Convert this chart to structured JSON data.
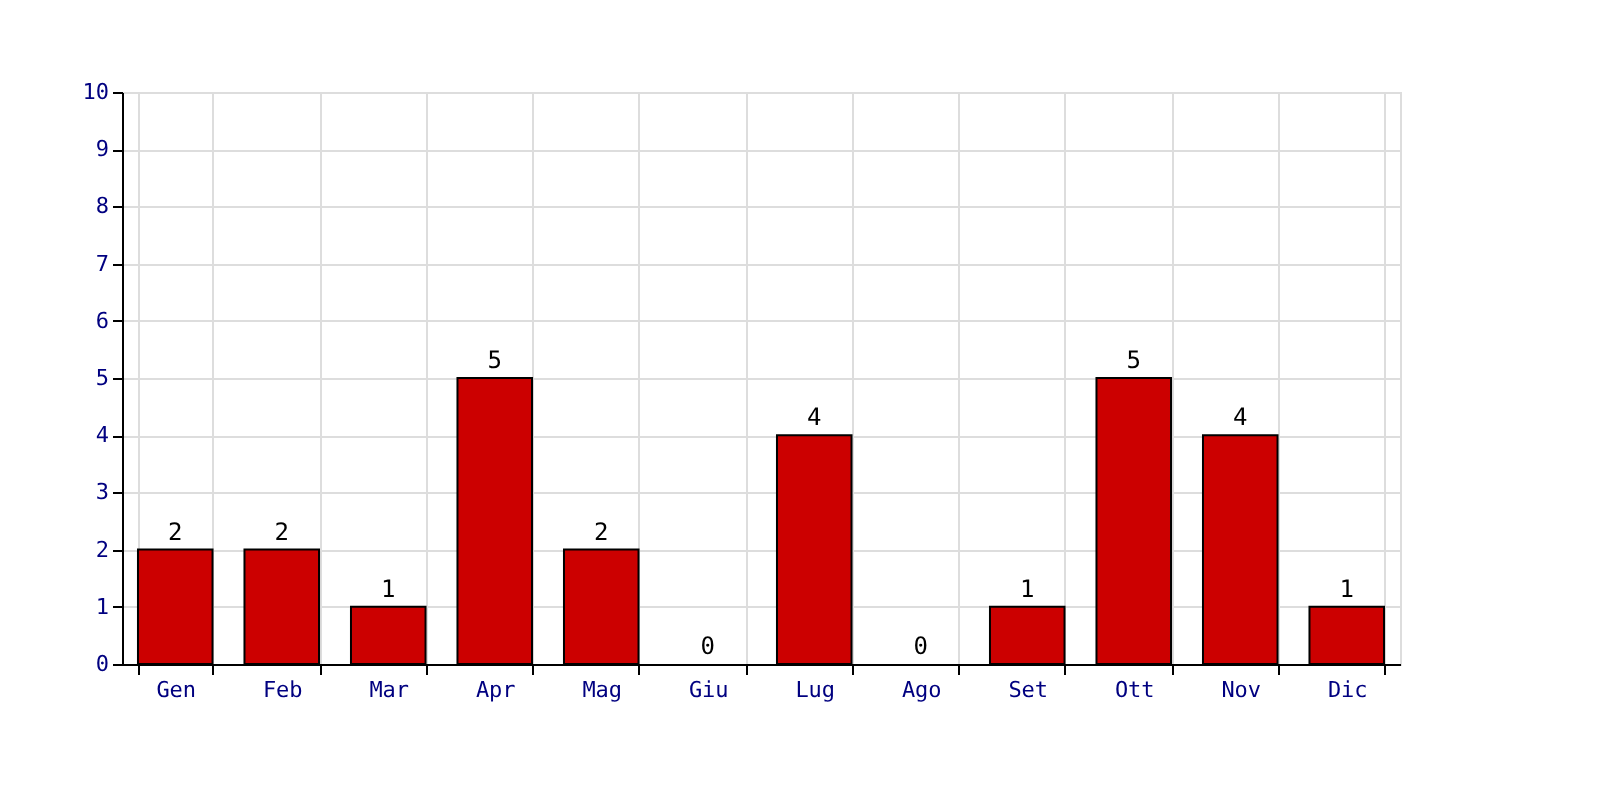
{
  "chart_data": {
    "type": "bar",
    "categories": [
      "Gen",
      "Feb",
      "Mar",
      "Apr",
      "Mag",
      "Giu",
      "Lug",
      "Ago",
      "Set",
      "Ott",
      "Nov",
      "Dic"
    ],
    "values": [
      2,
      2,
      1,
      5,
      2,
      0,
      4,
      0,
      1,
      5,
      4,
      1
    ],
    "color": "#cc0000",
    "ylim": [
      0,
      10
    ],
    "yticks": [
      0,
      1,
      2,
      3,
      4,
      5,
      6,
      7,
      8,
      9,
      10
    ],
    "grid": true,
    "data_labels": true
  }
}
